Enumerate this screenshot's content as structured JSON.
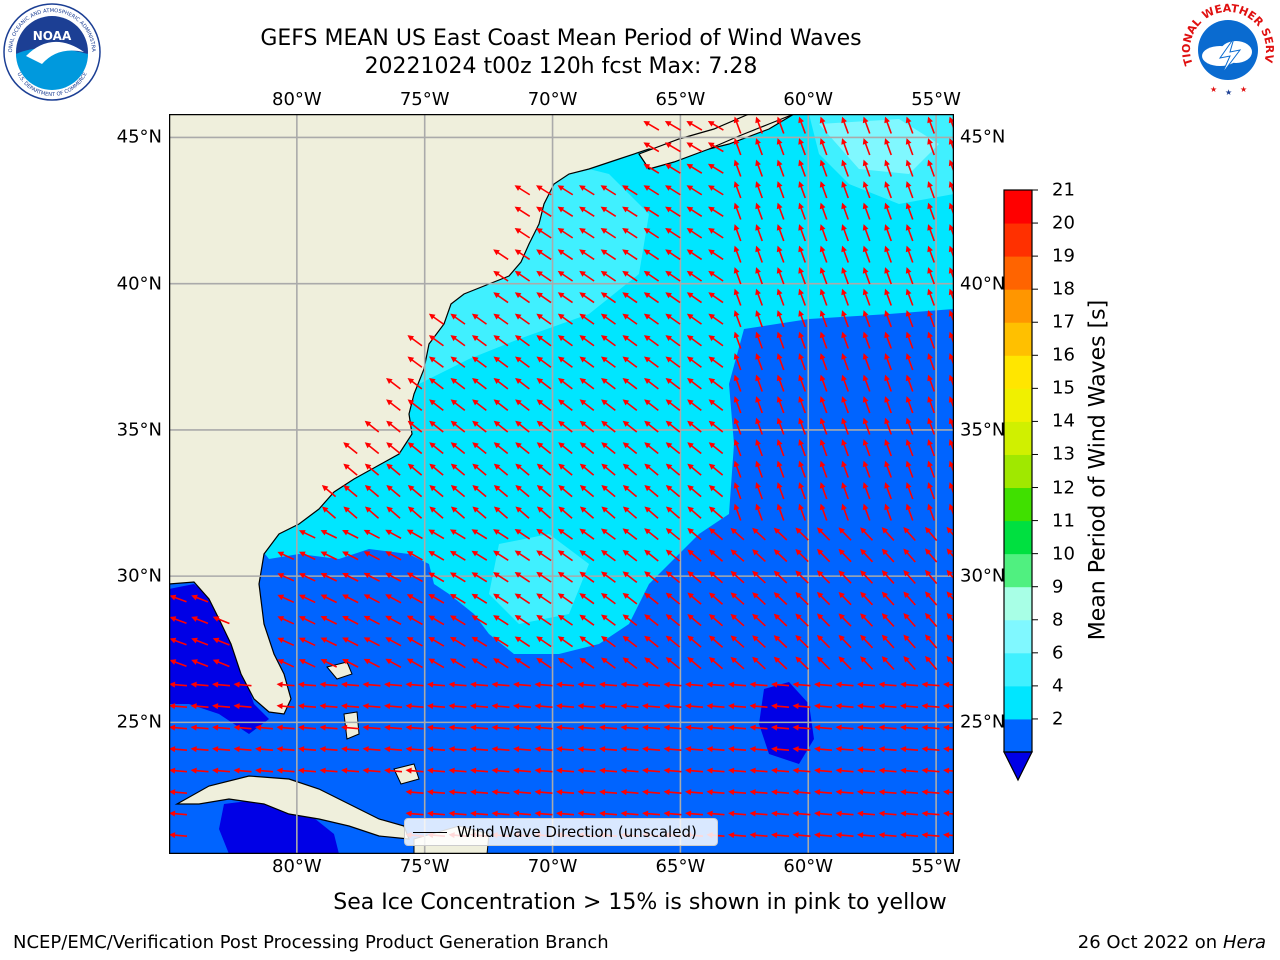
{
  "title": {
    "line1": "GEFS MEAN US East Coast Mean Period of Wind Waves",
    "line2": "20221024 t00z 120h fcst   Max: 7.28"
  },
  "map": {
    "lon_labels": [
      "80°W",
      "75°W",
      "70°W",
      "65°W",
      "60°W",
      "55°W"
    ],
    "lat_labels": [
      "45°N",
      "40°N",
      "35°N",
      "30°N",
      "25°N"
    ],
    "extent": {
      "lon_min": -85,
      "lon_max": -54.3,
      "lat_min": 20.5,
      "lat_max": 45.8
    },
    "land_color": "#efefdc",
    "arrow_color": "#ff0000",
    "legend_label": "Wind Wave Direction (unscaled)"
  },
  "colorbar": {
    "title": "Mean Period of Wind Waves [s]",
    "ticks": [
      "21",
      "20",
      "19",
      "18",
      "17",
      "16",
      "15",
      "14",
      "13",
      "12",
      "11",
      "10",
      "9",
      "8",
      "6",
      "4",
      "2"
    ],
    "colors": [
      "#0000e6",
      "#0064ff",
      "#00e6ff",
      "#40f0ff",
      "#80f8ff",
      "#a8ffe6",
      "#50f080",
      "#00e040",
      "#40e000",
      "#a0e800",
      "#d0f000",
      "#f0f000",
      "#ffe600",
      "#ffc000",
      "#ff9600",
      "#ff6400",
      "#ff3000",
      "#ff0000"
    ]
  },
  "caption": "Sea Ice Concentration > 15% is shown in pink to yellow",
  "footer": {
    "left": "NCEP/EMC/Verification Post Processing Product Generation Branch",
    "right_prefix": "26 Oct 2022 on ",
    "right_italic": "Hera"
  },
  "logos": {
    "noaa": "NOAA",
    "noaa_ring": "NATIONAL OCEANIC AND ATMOSPHERIC ADMINISTRATION",
    "noaa_ring_bottom": "U.S. DEPARTMENT OF COMMERCE",
    "nws_ring": "NATIONAL WEATHER SERVICE"
  }
}
